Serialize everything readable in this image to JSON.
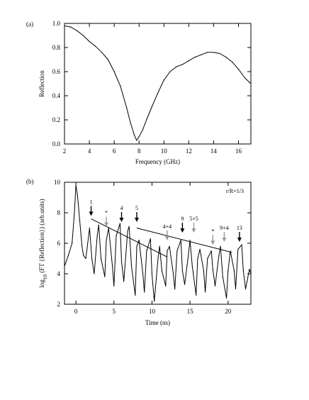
{
  "chart_data": [
    {
      "panel_label": "(a)",
      "type": "line",
      "xlabel": "Frequency (GHz)",
      "ylabel": "Reflection",
      "xlim": [
        2,
        17
      ],
      "ylim": [
        0,
        1.0
      ],
      "xticks": [
        2,
        4,
        6,
        8,
        10,
        12,
        14,
        16
      ],
      "yticks": [
        0.0,
        0.2,
        0.4,
        0.6,
        0.8,
        1.0
      ],
      "ytick_labels": [
        "0.0",
        "0.2",
        "0.4",
        "0.6",
        "0.8",
        "1.0"
      ],
      "grid": false,
      "series": [
        {
          "x": [
            2.0,
            2.5,
            3.0,
            3.5,
            4.0,
            4.5,
            5.0,
            5.5,
            6.0,
            6.5,
            7.0,
            7.3,
            7.6,
            7.8,
            8.0,
            8.3,
            8.6,
            9.0,
            9.5,
            10.0,
            10.5,
            11.0,
            11.5,
            12.0,
            12.5,
            13.0,
            13.5,
            14.0,
            14.5,
            15.0,
            15.5,
            16.0,
            16.5,
            17.0
          ],
          "y": [
            0.98,
            0.97,
            0.94,
            0.9,
            0.85,
            0.81,
            0.76,
            0.7,
            0.6,
            0.48,
            0.3,
            0.18,
            0.08,
            0.03,
            0.06,
            0.12,
            0.2,
            0.3,
            0.42,
            0.53,
            0.6,
            0.64,
            0.66,
            0.69,
            0.72,
            0.74,
            0.76,
            0.76,
            0.75,
            0.72,
            0.68,
            0.62,
            0.55,
            0.5
          ]
        }
      ]
    },
    {
      "panel_label": "(b)",
      "type": "line",
      "xlabel": "Time (ns)",
      "ylabel": "log10 (FT {Reflection}) (arb.units)",
      "ylabel_parts": {
        "pre": "log",
        "sub": "10",
        "post": " (FT {Reflection}) (arb.units)"
      },
      "xlim": [
        -1.5,
        23
      ],
      "ylim": [
        2,
        10
      ],
      "xticks": [
        0,
        5,
        10,
        15,
        20
      ],
      "yticks": [
        2,
        4,
        6,
        8,
        10
      ],
      "grid": false,
      "legend_text": "r/R=1/3",
      "series": [
        {
          "x": [
            -1.5,
            -1.0,
            -0.5,
            -0.2,
            0.0,
            0.2,
            0.5,
            0.8,
            1.0,
            1.3,
            1.8,
            2.1,
            2.4,
            2.8,
            3.0,
            3.3,
            3.8,
            4.0,
            4.3,
            4.8,
            5.0,
            5.3,
            5.8,
            6.0,
            6.3,
            6.8,
            7.0,
            7.3,
            7.8,
            8.0,
            8.3,
            8.8,
            9.0,
            9.3,
            9.8,
            10.0,
            10.3,
            10.8,
            11.0,
            11.3,
            11.8,
            12.0,
            12.3,
            12.8,
            13.0,
            13.3,
            13.8,
            14.0,
            14.3,
            14.8,
            15.0,
            15.3,
            15.8,
            16.0,
            16.3,
            16.8,
            17.0,
            17.3,
            17.8,
            18.0,
            18.3,
            18.8,
            19.0,
            19.3,
            19.8,
            20.0,
            20.3,
            20.8,
            21.0,
            21.3,
            21.8,
            22.0,
            22.3,
            22.8,
            23.0
          ],
          "y": [
            4.5,
            5.2,
            6.0,
            8.0,
            9.8,
            9.2,
            7.5,
            5.8,
            5.2,
            5.0,
            7.0,
            5.0,
            4.0,
            6.5,
            7.2,
            5.0,
            3.8,
            6.2,
            7.0,
            4.5,
            3.2,
            6.5,
            7.3,
            4.8,
            3.5,
            6.8,
            7.1,
            4.5,
            2.6,
            5.8,
            6.2,
            4.0,
            2.8,
            5.5,
            6.3,
            4.0,
            2.2,
            5.0,
            5.8,
            4.2,
            3.2,
            5.5,
            5.8,
            4.0,
            3.0,
            5.5,
            6.2,
            4.2,
            3.3,
            5.3,
            6.2,
            4.5,
            2.6,
            5.0,
            5.6,
            4.2,
            2.8,
            5.0,
            5.5,
            4.3,
            3.2,
            5.2,
            5.8,
            3.8,
            2.4,
            4.2,
            5.5,
            4.2,
            3.0,
            5.6,
            5.9,
            4.2,
            3.0,
            4.3,
            4.0
          ]
        }
      ],
      "trend_lines": [
        {
          "x": [
            2.0,
            12.0
          ],
          "y": [
            7.6,
            5.1
          ]
        },
        {
          "x": [
            8.0,
            20.5
          ],
          "y": [
            7.0,
            5.4
          ]
        }
      ],
      "annotations": [
        {
          "text": "1",
          "x": 2.0,
          "y_tip": 7.7,
          "color": "#000000"
        },
        {
          "text": "*",
          "x": 4.0,
          "y_tip": 7.0,
          "color": "#9a9a9a"
        },
        {
          "text": "4",
          "x": 6.0,
          "y_tip": 7.3,
          "color": "#000000"
        },
        {
          "text": "5",
          "x": 8.0,
          "y_tip": 7.3,
          "color": "#000000"
        },
        {
          "text": "4+4",
          "x": 12.0,
          "y_tip": 6.1,
          "color": "#9a9a9a"
        },
        {
          "text": "9",
          "x": 14.0,
          "y_tip": 6.6,
          "color": "#000000"
        },
        {
          "text": "5+5",
          "x": 15.5,
          "y_tip": 6.6,
          "color": "#9a9a9a"
        },
        {
          "text": "*",
          "x": 18.0,
          "y_tip": 5.8,
          "color": "#9a9a9a"
        },
        {
          "text": "9+4",
          "x": 19.5,
          "y_tip": 6.0,
          "color": "#9a9a9a"
        },
        {
          "text": "13",
          "x": 21.5,
          "y_tip": 6.0,
          "color": "#000000"
        }
      ]
    }
  ]
}
